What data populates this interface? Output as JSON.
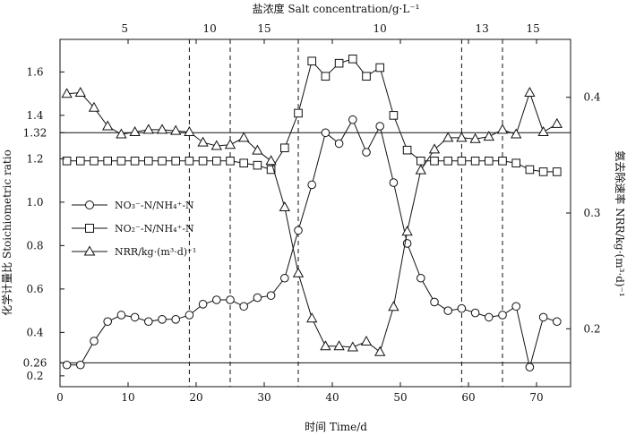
{
  "chart_data": {
    "type": "line",
    "x_axis": {
      "label": "时间 Time/d",
      "range": [
        0,
        75
      ],
      "ticks": [
        "0",
        "10",
        "20",
        "30",
        "40",
        "50",
        "60",
        "70"
      ],
      "tick_values": [
        0,
        10,
        20,
        30,
        40,
        50,
        60,
        70
      ]
    },
    "top_axis": {
      "label": "盐浓度 Salt concentration/g·L⁻¹",
      "phases": [
        {
          "label": "5",
          "from": 0,
          "to": 19
        },
        {
          "label": "10",
          "from": 19,
          "to": 25
        },
        {
          "label": "15",
          "from": 25,
          "to": 35
        },
        {
          "label": "10",
          "from": 35,
          "to": 59
        },
        {
          "label": "13",
          "from": 59,
          "to": 65
        },
        {
          "label": "15",
          "from": 65,
          "to": 74
        }
      ],
      "phase_boundaries": [
        19,
        25,
        35,
        59,
        65
      ]
    },
    "y_left": {
      "label": "化学计量比 Stoichiometric ratio",
      "range": [
        0.15,
        1.75
      ],
      "tick_values": [
        0.2,
        0.26,
        0.4,
        0.6,
        0.8,
        1.0,
        1.2,
        1.32,
        1.4,
        1.6
      ],
      "ticks": [
        "0.2",
        "0.26",
        "0.4",
        "0.6",
        "0.8",
        "1.0",
        "1.2",
        "1.32",
        "1.4",
        "1.6"
      ]
    },
    "y_right": {
      "label": "氨去除速率 NRR/kg·(m³·d)⁻¹",
      "range": [
        0.15,
        0.45
      ],
      "tick_values": [
        0.2,
        0.3,
        0.4
      ],
      "ticks": [
        "0.2",
        "0.3",
        "0.4"
      ]
    },
    "reference_lines": [
      0.26,
      1.32
    ],
    "grid": false,
    "legend_position": "left-middle",
    "series": [
      {
        "name": "NO₃⁻-N/NH₄⁺-N",
        "marker": "circle",
        "axis": "left",
        "x": [
          1,
          3,
          5,
          7,
          9,
          11,
          13,
          15,
          17,
          19,
          21,
          23,
          25,
          27,
          29,
          31,
          33,
          35,
          37,
          39,
          41,
          43,
          45,
          47,
          49,
          51,
          53,
          55,
          57,
          59,
          61,
          63,
          65,
          67,
          69,
          71,
          73
        ],
        "values": [
          0.25,
          0.25,
          0.36,
          0.45,
          0.48,
          0.47,
          0.45,
          0.46,
          0.46,
          0.48,
          0.53,
          0.55,
          0.55,
          0.52,
          0.56,
          0.57,
          0.65,
          0.87,
          1.08,
          1.32,
          1.27,
          1.38,
          1.23,
          1.35,
          1.09,
          0.81,
          0.65,
          0.54,
          0.5,
          0.51,
          0.49,
          0.47,
          0.48,
          0.52,
          0.24,
          0.47,
          0.45
        ]
      },
      {
        "name": "NO₂⁻-N/NH₄⁺-N",
        "marker": "square",
        "axis": "left",
        "x": [
          1,
          3,
          5,
          7,
          9,
          11,
          13,
          15,
          17,
          19,
          21,
          23,
          25,
          27,
          29,
          31,
          33,
          35,
          37,
          39,
          41,
          43,
          45,
          47,
          49,
          51,
          53,
          55,
          57,
          59,
          61,
          63,
          65,
          67,
          69,
          71,
          73
        ],
        "values": [
          1.19,
          1.19,
          1.19,
          1.19,
          1.19,
          1.19,
          1.19,
          1.19,
          1.19,
          1.19,
          1.19,
          1.19,
          1.19,
          1.18,
          1.17,
          1.15,
          1.25,
          1.41,
          1.65,
          1.58,
          1.64,
          1.66,
          1.58,
          1.62,
          1.4,
          1.24,
          1.19,
          1.19,
          1.19,
          1.19,
          1.19,
          1.19,
          1.19,
          1.18,
          1.15,
          1.14,
          1.14
        ]
      },
      {
        "name": "NRR/kg·(m³·d)⁻¹",
        "marker": "triangle",
        "axis": "right",
        "x": [
          1,
          3,
          5,
          7,
          9,
          11,
          13,
          15,
          17,
          19,
          21,
          23,
          25,
          27,
          29,
          31,
          33,
          35,
          37,
          39,
          41,
          43,
          45,
          47,
          49,
          51,
          53,
          55,
          57,
          59,
          61,
          63,
          65,
          67,
          69,
          71,
          73
        ],
        "values": [
          0.403,
          0.404,
          0.391,
          0.375,
          0.368,
          0.37,
          0.372,
          0.372,
          0.371,
          0.37,
          0.361,
          0.358,
          0.359,
          0.365,
          0.354,
          0.345,
          0.305,
          0.248,
          0.209,
          0.185,
          0.185,
          0.184,
          0.189,
          0.18,
          0.219,
          0.284,
          0.337,
          0.355,
          0.365,
          0.365,
          0.364,
          0.366,
          0.372,
          0.368,
          0.404,
          0.37,
          0.377
        ]
      }
    ]
  }
}
